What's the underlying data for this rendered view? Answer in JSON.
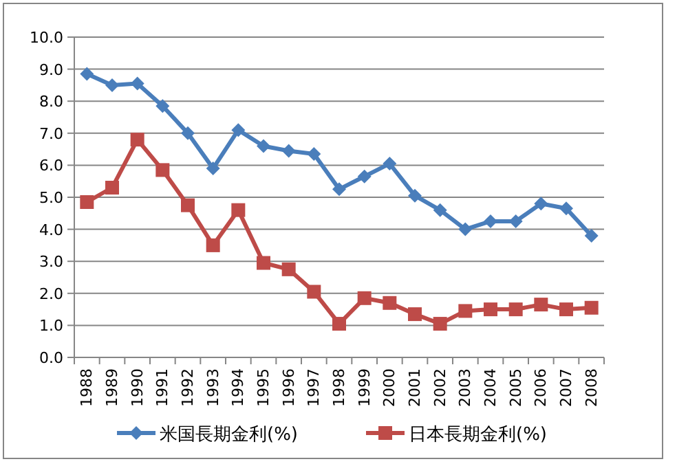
{
  "chart_data": {
    "type": "line",
    "categories": [
      "1988",
      "1989",
      "1990",
      "1991",
      "1992",
      "1993",
      "1994",
      "1995",
      "1996",
      "1997",
      "1998",
      "1999",
      "2000",
      "2001",
      "2002",
      "2003",
      "2004",
      "2005",
      "2006",
      "2007",
      "2008"
    ],
    "series": [
      {
        "name": "米国長期金利(%)",
        "color": "#4a7ebb",
        "marker": "diamond",
        "values": [
          8.85,
          8.5,
          8.55,
          7.85,
          7.0,
          5.9,
          7.1,
          6.6,
          6.45,
          6.35,
          5.25,
          5.65,
          6.05,
          5.05,
          4.6,
          4.0,
          4.25,
          4.25,
          4.8,
          4.65,
          3.8
        ]
      },
      {
        "name": "日本長期金利(%)",
        "color": "#be4b48",
        "marker": "square",
        "values": [
          4.85,
          5.3,
          6.8,
          5.85,
          4.75,
          3.5,
          4.6,
          2.95,
          2.75,
          2.05,
          1.05,
          1.85,
          1.7,
          1.35,
          1.05,
          1.45,
          1.5,
          1.5,
          1.65,
          1.5,
          1.55
        ]
      }
    ],
    "ylim": [
      0,
      10
    ],
    "yticks": [
      {
        "value": 0,
        "label": "0.0"
      },
      {
        "value": 1,
        "label": "1.0"
      },
      {
        "value": 2,
        "label": "2.0"
      },
      {
        "value": 3,
        "label": "3.0"
      },
      {
        "value": 4,
        "label": "4.0"
      },
      {
        "value": 5,
        "label": "5.0"
      },
      {
        "value": 6,
        "label": "6.0"
      },
      {
        "value": 7,
        "label": "7.0"
      },
      {
        "value": 8,
        "label": "8.0"
      },
      {
        "value": 9,
        "label": "9.0"
      },
      {
        "value": 10,
        "label": "10.0"
      }
    ],
    "grid": "y",
    "legend": "bottom"
  }
}
